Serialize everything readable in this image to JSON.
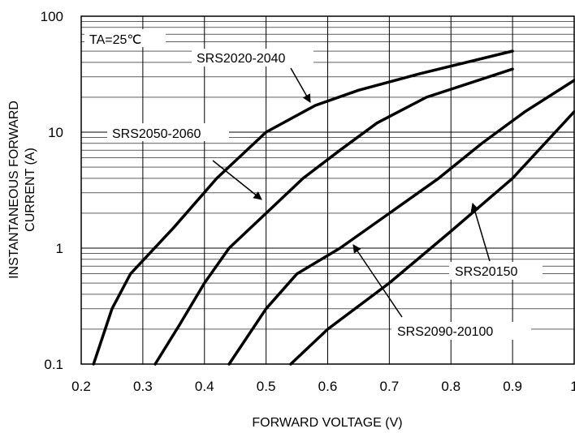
{
  "chart_data": {
    "type": "line",
    "xlabel": "FORWARD VOLTAGE (V)",
    "ylabel_lines": [
      "INSTANTANEOUS FORWARD",
      "CURRENT (A)"
    ],
    "xlim": [
      0.2,
      1.0
    ],
    "ylim": [
      0.1,
      100
    ],
    "y_scale": "log",
    "grid": true,
    "x_ticks": [
      "0.2",
      "0.3",
      "0.4",
      "0.5",
      "0.6",
      "0.7",
      "0.8",
      "0.9",
      "1"
    ],
    "y_ticks": [
      "0.1",
      "1",
      "10",
      "100"
    ],
    "condition_label": "TA=25℃",
    "series": [
      {
        "name": "SRS2020-2040",
        "points": [
          [
            0.22,
            0.1
          ],
          [
            0.25,
            0.3
          ],
          [
            0.28,
            0.6
          ],
          [
            0.35,
            1.5
          ],
          [
            0.42,
            4
          ],
          [
            0.5,
            10
          ],
          [
            0.58,
            17
          ],
          [
            0.65,
            23
          ],
          [
            0.75,
            32
          ],
          [
            0.9,
            50
          ]
        ]
      },
      {
        "name": "SRS2050-2060",
        "points": [
          [
            0.32,
            0.1
          ],
          [
            0.36,
            0.22
          ],
          [
            0.4,
            0.5
          ],
          [
            0.44,
            1
          ],
          [
            0.5,
            2
          ],
          [
            0.56,
            4
          ],
          [
            0.62,
            7
          ],
          [
            0.68,
            12
          ],
          [
            0.76,
            20
          ],
          [
            0.9,
            35
          ]
        ]
      },
      {
        "name": "SRS2090-20100",
        "points": [
          [
            0.44,
            0.1
          ],
          [
            0.5,
            0.3
          ],
          [
            0.55,
            0.6
          ],
          [
            0.62,
            1
          ],
          [
            0.7,
            2
          ],
          [
            0.78,
            4
          ],
          [
            0.85,
            8
          ],
          [
            0.92,
            15
          ],
          [
            1.0,
            28
          ]
        ]
      },
      {
        "name": "SRS20150",
        "points": [
          [
            0.54,
            0.1
          ],
          [
            0.6,
            0.2
          ],
          [
            0.7,
            0.5
          ],
          [
            0.8,
            1.4
          ],
          [
            0.9,
            4
          ],
          [
            1.0,
            15
          ]
        ]
      }
    ]
  }
}
